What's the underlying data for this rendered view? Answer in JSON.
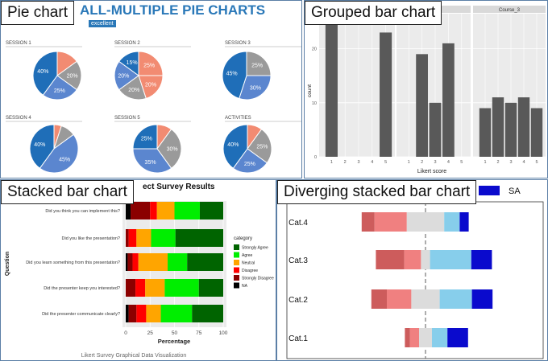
{
  "panels": {
    "pie": {
      "label": "Pie chart",
      "header": "ALL-MULTIPLE PIE CHARTS",
      "legend_chip": "excellent",
      "colors": [
        "#f28b72",
        "#9a9a9a",
        "#5b86cf",
        "#1f6eb8"
      ],
      "charts": [
        {
          "title": "SESSION 1",
          "slices": [
            15,
            20,
            25,
            40
          ],
          "labels": [
            "",
            "20%",
            "25%",
            "40%"
          ]
        },
        {
          "title": "SESSION 2",
          "slices": [
            25,
            20,
            20,
            20,
            15
          ],
          "labels": [
            "25%",
            "20%",
            "20%",
            "20%",
            "15%"
          ],
          "colors": [
            "#f28b72",
            "#f28b72",
            "#9a9a9a",
            "#5b86cf",
            "#1f6eb8"
          ]
        },
        {
          "title": "SESSION 3",
          "slices": [
            25,
            30,
            45
          ],
          "labels": [
            "25%",
            "30%",
            "45%"
          ],
          "colors": [
            "#9a9a9a",
            "#5b86cf",
            "#1f6eb8"
          ]
        },
        {
          "title": "SESSION 4",
          "slices": [
            5,
            10,
            45,
            40
          ],
          "labels": [
            "",
            "",
            "45%",
            "40%"
          ]
        },
        {
          "title": "SESSION 5",
          "slices": [
            10,
            30,
            35,
            25
          ],
          "labels": [
            "",
            "30%",
            "35%",
            "25%"
          ]
        },
        {
          "title": "ACTIVITIES",
          "slices": [
            10,
            25,
            25,
            40
          ],
          "labels": [
            "",
            "25%",
            "25%",
            "40%"
          ]
        }
      ]
    },
    "grouped": {
      "label": "Grouped bar chart",
      "facet_title": "Course_3",
      "bar_color": "#595959",
      "strip_color": "#d9d9d9",
      "panel_bg": "#ebebeb"
    },
    "stacked": {
      "label": "Stacked bar chart",
      "title_visible": "ect Survey Results",
      "caption": "Likert Survey Graphical Data Visualization",
      "panel_bg": "#ebebeb"
    },
    "diverging": {
      "label": "Diverging stacked bar chart",
      "legend_label": "SA",
      "legend_color": "#0a0acd"
    }
  },
  "chart_data": [
    {
      "type": "pie",
      "charts": [
        {
          "title": "SESSION 1",
          "values": [
            15,
            20,
            25,
            40
          ]
        },
        {
          "title": "SESSION 2",
          "values": [
            25,
            20,
            20,
            20,
            15
          ]
        },
        {
          "title": "SESSION 3",
          "values": [
            25,
            30,
            45
          ]
        },
        {
          "title": "SESSION 4",
          "values": [
            5,
            10,
            45,
            40
          ]
        },
        {
          "title": "SESSION 5",
          "values": [
            10,
            30,
            35,
            25
          ]
        },
        {
          "title": "ACTIVITIES",
          "values": [
            10,
            25,
            25,
            40
          ]
        }
      ]
    },
    {
      "type": "bar",
      "xlabel": "Likert score",
      "ylabel": "count",
      "ylim": [
        0,
        25
      ],
      "yticks": [
        0,
        10,
        20
      ],
      "x": [
        1,
        2,
        3,
        4,
        5
      ],
      "facets": [
        {
          "name": "",
          "values": [
            25,
            0,
            0,
            0,
            23
          ]
        },
        {
          "name": "",
          "values": [
            0,
            19,
            10,
            21,
            0
          ]
        },
        {
          "name": "Course_3",
          "values": [
            9,
            11,
            10,
            11,
            9
          ]
        }
      ]
    },
    {
      "type": "bar",
      "orientation": "horizontal",
      "stacked": true,
      "title": "ect Survey Results",
      "xlabel": "Percentage",
      "ylabel": "Question",
      "xlim": [
        0,
        100
      ],
      "xticks": [
        0,
        25,
        50,
        75,
        100
      ],
      "legend_title": "category",
      "legend_position": "right",
      "categories": [
        "Did you think you can implement this?",
        "Did you like the presentation?",
        "Did you learn something from this presentation?",
        "Did the presenter keep you interested?",
        "Did the presenter communicate clearly?"
      ],
      "series": [
        {
          "name": "NA",
          "color": "#000000",
          "values": [
            5,
            0,
            2,
            0,
            3
          ]
        },
        {
          "name": "Strongly Disagree",
          "color": "#8b0000",
          "values": [
            20,
            3,
            5,
            10,
            8
          ]
        },
        {
          "name": "Disagree",
          "color": "#ff0000",
          "values": [
            7,
            8,
            6,
            10,
            10
          ]
        },
        {
          "name": "Neutral",
          "color": "#ffa500",
          "values": [
            18,
            15,
            30,
            20,
            15
          ]
        },
        {
          "name": "Agree",
          "color": "#00ee00",
          "values": [
            26,
            25,
            20,
            35,
            32
          ]
        },
        {
          "name": "Strongly Agree",
          "color": "#006400",
          "values": [
            24,
            49,
            37,
            25,
            32
          ]
        }
      ]
    },
    {
      "type": "bar",
      "orientation": "horizontal",
      "diverging": true,
      "categories": [
        "Cat.4",
        "Cat.3",
        "Cat.2",
        "Cat.1"
      ],
      "legend": [
        "SA"
      ],
      "series": [
        {
          "name": "",
          "color": "#cd5c5c",
          "values": [
            0.1,
            0.22,
            0.12,
            0.04
          ]
        },
        {
          "name": "",
          "color": "#f08080",
          "values": [
            0.25,
            0.13,
            0.19,
            0.07
          ]
        },
        {
          "name": "",
          "color": "#dcdcdc",
          "values": [
            0.29,
            0.07,
            0.22,
            0.1
          ]
        },
        {
          "name": "",
          "color": "#87ceeb",
          "values": [
            0.12,
            0.32,
            0.25,
            0.12
          ]
        },
        {
          "name": "SA",
          "color": "#0a0acd",
          "values": [
            0.07,
            0.16,
            0.16,
            0.16
          ]
        }
      ]
    }
  ]
}
